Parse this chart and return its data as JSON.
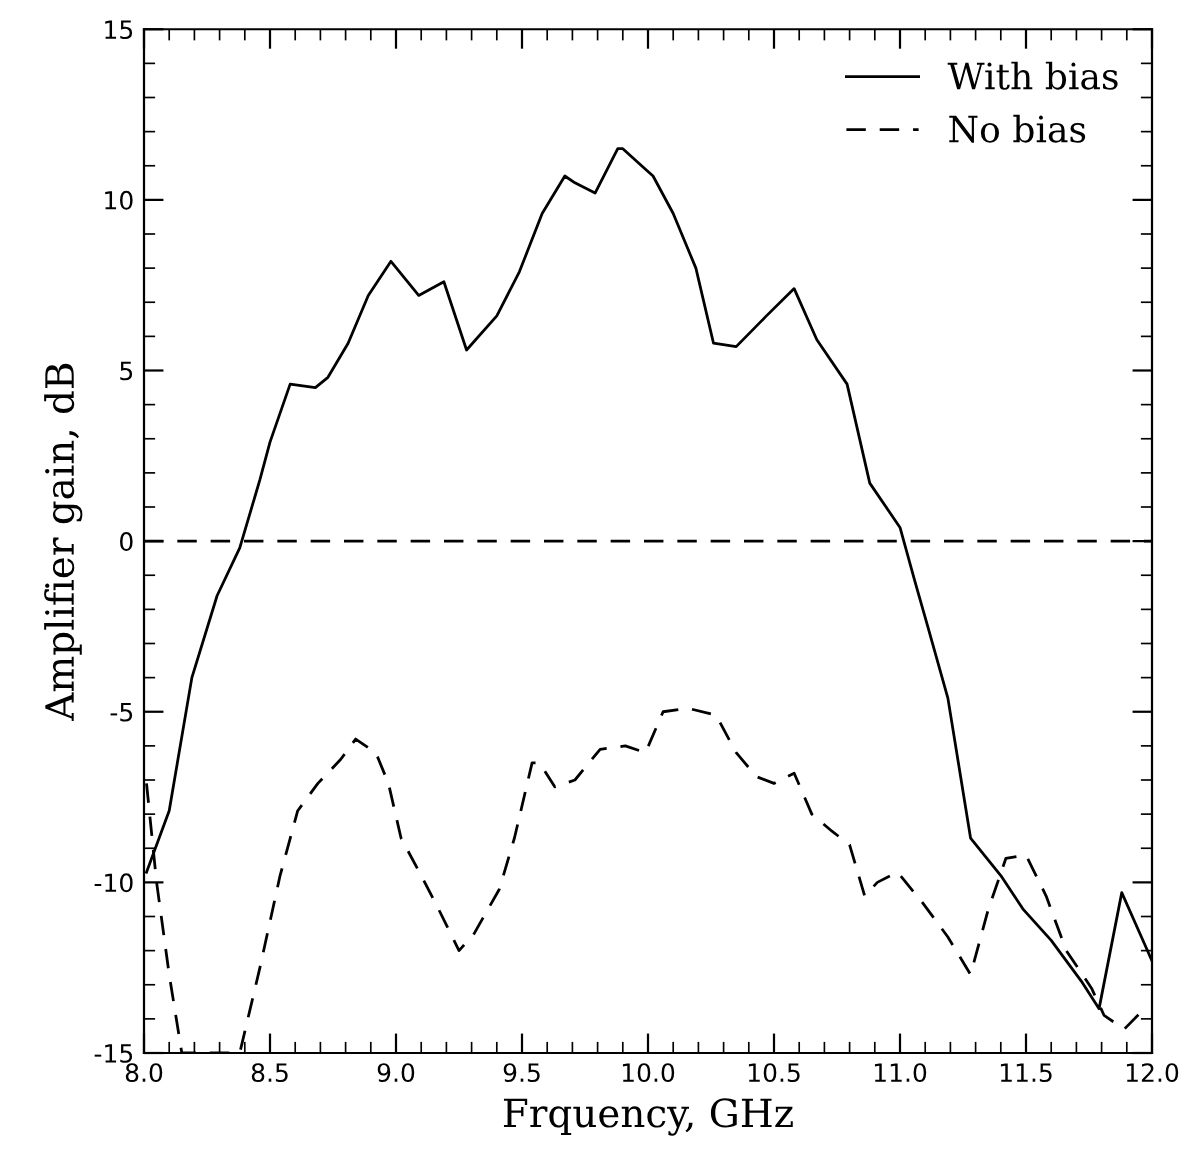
{
  "chart_data": {
    "type": "line",
    "xlabel": "Frquency, GHz",
    "ylabel": "Amplifier gain, dB",
    "xlim": [
      8.0,
      12.0
    ],
    "ylim": [
      -15,
      15
    ],
    "xticks": [
      {
        "value": 8.0,
        "label": "8.0"
      },
      {
        "value": 8.1,
        "label": null
      },
      {
        "value": 8.2,
        "label": null
      },
      {
        "value": 8.3,
        "label": null
      },
      {
        "value": 8.4,
        "label": null
      },
      {
        "value": 8.5,
        "label": "8.5"
      },
      {
        "value": 8.6,
        "label": null
      },
      {
        "value": 8.7,
        "label": null
      },
      {
        "value": 8.8,
        "label": null
      },
      {
        "value": 8.9,
        "label": null
      },
      {
        "value": 9.0,
        "label": "9.0"
      },
      {
        "value": 9.1,
        "label": null
      },
      {
        "value": 9.2,
        "label": null
      },
      {
        "value": 9.3,
        "label": null
      },
      {
        "value": 9.4,
        "label": null
      },
      {
        "value": 9.5,
        "label": "9.5"
      },
      {
        "value": 9.6,
        "label": null
      },
      {
        "value": 9.7,
        "label": null
      },
      {
        "value": 9.8,
        "label": null
      },
      {
        "value": 9.9,
        "label": null
      },
      {
        "value": 10.0,
        "label": "10.0"
      },
      {
        "value": 10.1,
        "label": null
      },
      {
        "value": 10.2,
        "label": null
      },
      {
        "value": 10.3,
        "label": null
      },
      {
        "value": 10.4,
        "label": null
      },
      {
        "value": 10.5,
        "label": "10.5"
      },
      {
        "value": 10.6,
        "label": null
      },
      {
        "value": 10.7,
        "label": null
      },
      {
        "value": 10.8,
        "label": null
      },
      {
        "value": 10.9,
        "label": null
      },
      {
        "value": 11.0,
        "label": "11.0"
      },
      {
        "value": 11.1,
        "label": null
      },
      {
        "value": 11.2,
        "label": null
      },
      {
        "value": 11.3,
        "label": null
      },
      {
        "value": 11.4,
        "label": null
      },
      {
        "value": 11.5,
        "label": "11.5"
      },
      {
        "value": 11.6,
        "label": null
      },
      {
        "value": 11.7,
        "label": null
      },
      {
        "value": 11.8,
        "label": null
      },
      {
        "value": 11.9,
        "label": null
      },
      {
        "value": 12.0,
        "label": "12.0"
      }
    ],
    "yticks": [
      -15,
      {
        "value": -14,
        "label": null
      },
      {
        "value": -13,
        "label": null
      },
      {
        "value": -12,
        "label": null
      },
      {
        "value": -11,
        "label": null
      },
      -10,
      {
        "value": -9,
        "label": null
      },
      {
        "value": -8,
        "label": null
      },
      {
        "value": -7,
        "label": null
      },
      {
        "value": -6,
        "label": null
      },
      -5,
      {
        "value": -4,
        "label": null
      },
      {
        "value": -3,
        "label": null
      },
      {
        "value": -2,
        "label": null
      },
      {
        "value": -1,
        "label": null
      },
      0,
      {
        "value": 1,
        "label": null
      },
      {
        "value": 2,
        "label": null
      },
      {
        "value": 3,
        "label": null
      },
      {
        "value": 4,
        "label": null
      },
      5,
      {
        "value": 6,
        "label": null
      },
      {
        "value": 7,
        "label": null
      },
      {
        "value": 8,
        "label": null
      },
      {
        "value": 9,
        "label": null
      },
      10,
      {
        "value": 11,
        "label": null
      },
      {
        "value": 12,
        "label": null
      },
      {
        "value": 13,
        "label": null
      },
      {
        "value": 14,
        "label": null
      },
      15
    ],
    "grid": false,
    "legend": "top right",
    "marker": "none",
    "ref_lines": [
      {
        "axis": "y",
        "value": 0,
        "label": null,
        "color": "#000000",
        "line_style": "dashed"
      }
    ],
    "series": [
      {
        "name": "With bias",
        "color": "#000000",
        "line_style": "solid",
        "x": [
          8.01,
          8.1,
          8.19,
          8.29,
          8.38,
          8.46,
          8.5,
          8.58,
          8.68,
          8.73,
          8.81,
          8.89,
          8.98,
          9.09,
          9.19,
          9.28,
          9.4,
          9.49,
          9.58,
          9.67,
          9.71,
          9.79,
          9.88,
          9.9,
          9.99,
          10.02,
          10.1,
          10.19,
          10.26,
          10.35,
          10.47,
          10.58,
          10.67,
          10.79,
          10.88,
          11.0,
          11.06,
          11.11,
          11.19,
          11.28,
          11.4,
          11.49,
          11.6,
          11.72,
          11.79,
          11.88,
          11.97,
          12.0
        ],
        "values": [
          -9.7,
          -7.9,
          -4.0,
          -1.6,
          -0.2,
          1.8,
          2.9,
          4.6,
          4.5,
          4.8,
          5.8,
          7.2,
          8.2,
          7.2,
          7.6,
          5.6,
          6.6,
          7.9,
          9.6,
          10.7,
          10.5,
          10.2,
          11.5,
          11.5,
          10.9,
          10.7,
          9.6,
          8.0,
          5.8,
          5.7,
          6.6,
          7.4,
          5.9,
          4.6,
          1.7,
          0.4,
          -1.2,
          -2.5,
          -4.6,
          -8.7,
          -9.8,
          -10.8,
          -11.7,
          -12.9,
          -13.7,
          -10.3,
          -11.8,
          -12.3
        ]
      },
      {
        "name": "No bias",
        "color": "#000000",
        "line_style": "dashed",
        "x": [
          8.01,
          8.05,
          8.1,
          8.15,
          8.38,
          8.46,
          8.54,
          8.61,
          8.69,
          8.78,
          8.84,
          8.92,
          8.97,
          9.02,
          9.1,
          9.17,
          9.25,
          9.31,
          9.41,
          9.47,
          9.54,
          9.57,
          9.63,
          9.71,
          9.81,
          9.91,
          9.99,
          10.06,
          10.16,
          10.27,
          10.35,
          10.43,
          10.5,
          10.58,
          10.65,
          10.73,
          10.8,
          10.86,
          10.91,
          10.99,
          11.09,
          11.19,
          11.28,
          11.35,
          11.42,
          11.5,
          11.58,
          11.66,
          11.76,
          11.81,
          11.89,
          11.97
        ],
        "values": [
          -7.1,
          -10.0,
          -12.7,
          -15.0,
          -15.0,
          -12.5,
          -9.8,
          -7.9,
          -7.1,
          -6.4,
          -5.8,
          -6.2,
          -7.1,
          -8.7,
          -9.8,
          -10.8,
          -12.0,
          -11.5,
          -10.2,
          -8.7,
          -6.5,
          -6.5,
          -7.2,
          -7.0,
          -6.1,
          -6.0,
          -6.2,
          -5.0,
          -4.9,
          -5.1,
          -6.2,
          -6.9,
          -7.1,
          -6.8,
          -8.0,
          -8.5,
          -8.9,
          -10.4,
          -10.0,
          -9.7,
          -10.6,
          -11.6,
          -12.7,
          -10.8,
          -9.3,
          -9.2,
          -10.4,
          -12.0,
          -13.1,
          -13.9,
          -14.3,
          -13.7
        ]
      }
    ]
  }
}
